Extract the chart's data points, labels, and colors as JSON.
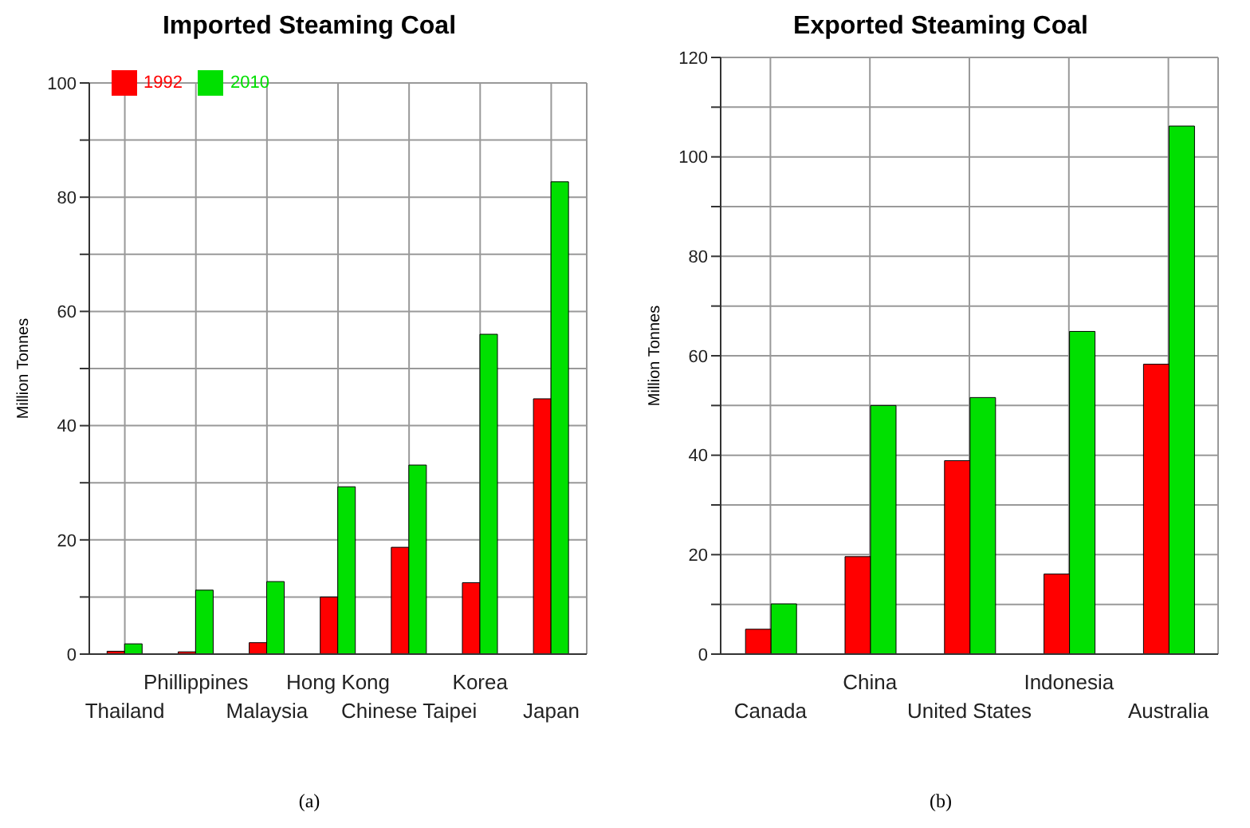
{
  "chart_data": [
    {
      "type": "bar",
      "title": "Imported Steaming Coal",
      "ylabel": "Million Tonnes",
      "categories": [
        "Thailand",
        "Phillippines",
        "Malaysia",
        "Hong Kong",
        "Chinese Taipei",
        "Korea",
        "Japan"
      ],
      "series": [
        {
          "name": "1992",
          "color": "#ff0000",
          "values": [
            0.5,
            0.4,
            2,
            10,
            18.7,
            12.5,
            44.7
          ]
        },
        {
          "name": "2010",
          "color": "#00e000",
          "values": [
            1.8,
            11.2,
            12.7,
            29.3,
            33.1,
            56,
            82.7
          ]
        }
      ],
      "ylim": [
        0,
        100
      ],
      "yticks": [
        0,
        {
          "value": 10,
          "label": null
        },
        20,
        {
          "value": 30,
          "label": null
        },
        40,
        {
          "value": 50,
          "label": null
        },
        60,
        {
          "value": 70,
          "label": null
        },
        80,
        {
          "value": 90,
          "label": null
        },
        100
      ],
      "grid": true,
      "legend": "top left",
      "annotations": [
        "(a)"
      ]
    },
    {
      "type": "bar",
      "title": "Exported Steaming Coal",
      "ylabel": "Million Tonnes",
      "categories": [
        "Canada",
        "China",
        "United States",
        "Indonesia",
        "Australia"
      ],
      "series": [
        {
          "name": "1992",
          "color": "#ff0000",
          "values": [
            5,
            19.6,
            38.9,
            16.1,
            58.3
          ]
        },
        {
          "name": "2010",
          "color": "#00e000",
          "values": [
            10.1,
            50,
            51.6,
            64.9,
            106.2
          ]
        }
      ],
      "ylim": [
        0,
        120
      ],
      "yticks": [
        0,
        {
          "value": 10,
          "label": null
        },
        20,
        {
          "value": 30,
          "label": null
        },
        40,
        {
          "value": 50,
          "label": null
        },
        60,
        {
          "value": 70,
          "label": null
        },
        80,
        {
          "value": 90,
          "label": null
        },
        100,
        {
          "value": 110,
          "label": null
        },
        120
      ],
      "grid": true,
      "legend": false,
      "annotations": [
        "(b)"
      ]
    }
  ]
}
